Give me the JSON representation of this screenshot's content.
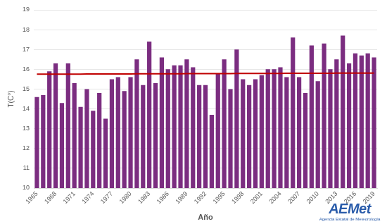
{
  "chart_data": {
    "type": "bar",
    "x_label": "Año",
    "y_label": "T(C°)",
    "categories": [
      "1965",
      null,
      null,
      "1968",
      null,
      null,
      "1971",
      null,
      null,
      "1974",
      null,
      null,
      "1977",
      null,
      null,
      "1980",
      null,
      null,
      "1983",
      null,
      null,
      "1986",
      null,
      null,
      "1989",
      null,
      null,
      "1992",
      null,
      null,
      "1995",
      null,
      null,
      "1998",
      null,
      null,
      "2001",
      null,
      null,
      "2004",
      null,
      null,
      "2007",
      null,
      null,
      "2010",
      null,
      null,
      "2013",
      null,
      null,
      "2016",
      null,
      null,
      "2019"
    ],
    "series": [
      {
        "type": "bar",
        "color": "#7b2d80",
        "values": [
          14.6,
          14.7,
          15.9,
          16.3,
          14.3,
          16.3,
          15.3,
          14.1,
          15.0,
          13.9,
          14.8,
          13.5,
          15.5,
          15.6,
          14.9,
          15.6,
          16.5,
          15.2,
          17.4,
          15.3,
          16.6,
          16.0,
          16.2,
          16.2,
          16.5,
          16.1,
          15.2,
          15.2,
          13.7,
          15.8,
          16.5,
          15.0,
          17.0,
          15.5,
          15.2,
          15.5,
          15.7,
          16.0,
          16.0,
          16.1,
          15.6,
          17.6,
          15.6,
          14.8,
          17.2,
          15.4,
          17.3,
          16.0,
          16.5,
          17.7,
          16.3,
          16.8,
          16.7,
          16.8,
          16.6
        ]
      },
      {
        "type": "line",
        "color": "#c00000",
        "values": [
          15.75,
          15.75,
          15.75,
          15.75,
          15.75,
          15.75,
          15.75,
          15.75,
          15.76,
          15.76,
          15.76,
          15.76,
          15.76,
          15.76,
          15.76,
          15.76,
          15.77,
          15.77,
          15.77,
          15.77,
          15.77,
          15.77,
          15.77,
          15.77,
          15.78,
          15.78,
          15.78,
          15.78,
          15.78,
          15.78,
          15.78,
          15.78,
          15.79,
          15.79,
          15.79,
          15.79,
          15.79,
          15.79,
          15.79,
          15.79,
          15.8,
          15.8,
          15.8,
          15.8,
          15.8,
          15.8,
          15.8,
          15.8,
          15.81,
          15.81,
          15.81,
          15.81,
          15.81,
          15.81,
          15.81
        ]
      }
    ],
    "ylim": [
      10,
      19
    ],
    "yticks": [
      10,
      11,
      12,
      13,
      14,
      15,
      16,
      17,
      18,
      19
    ],
    "grid": true
  },
  "logo": {
    "text": "AEMet",
    "subtitle": "Agencia Estatal de Meteorología"
  }
}
